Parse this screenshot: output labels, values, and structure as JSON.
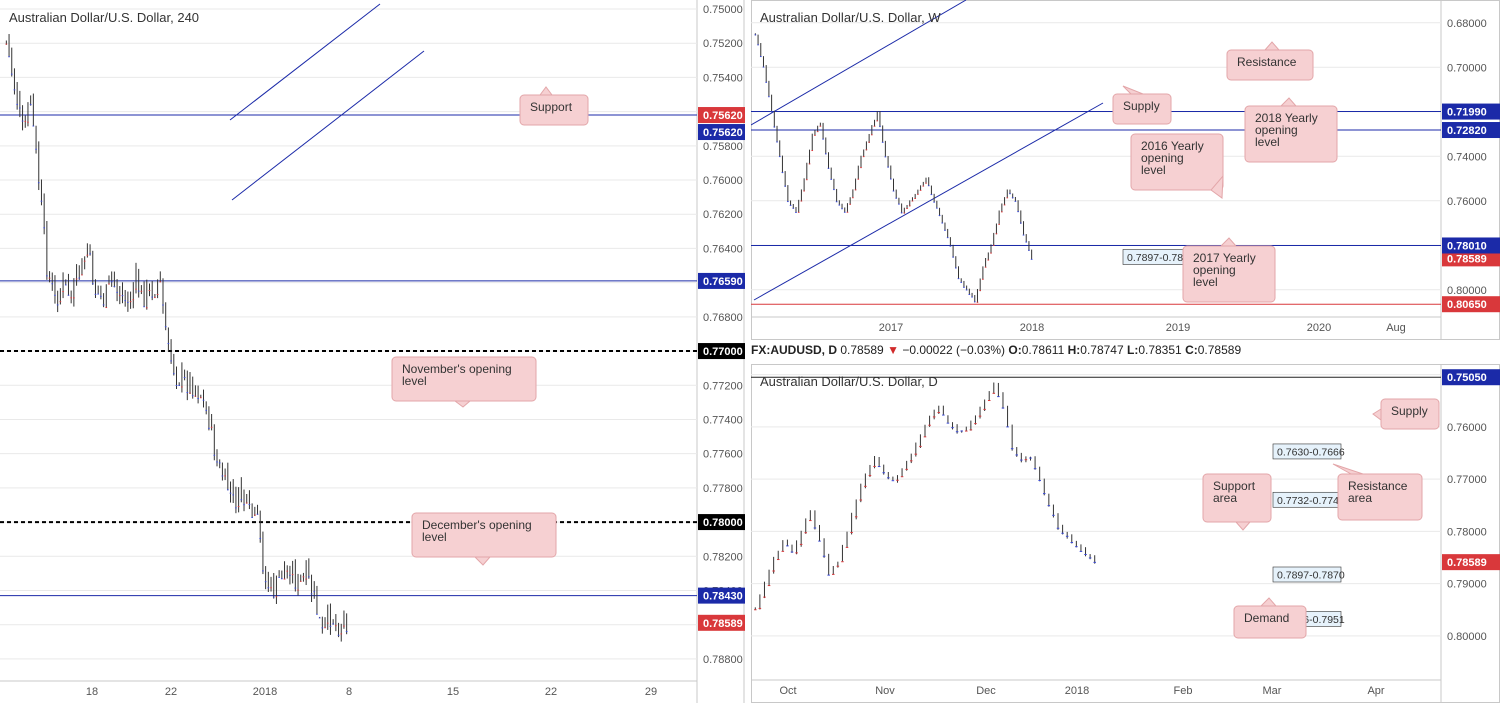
{
  "colors": {
    "up": "#3a4ad8",
    "down": "#d9383b",
    "level": "#1b2aa8",
    "red_level": "#d9383b",
    "callout_fill": "#f6d0d2",
    "callout_border": "#e3a6a9",
    "grid": "#e9e9e9",
    "zone_label_fill": "#e6f2fb"
  },
  "panels": {
    "h4": {
      "title": "Australian Dollar/U.S. Dollar, 240",
      "y_ticks": [
        "0.78800",
        "0.78600",
        "0.78400",
        "0.78200",
        "0.78000",
        "0.77800",
        "0.77600",
        "0.77400",
        "0.77200",
        "0.77000",
        "0.76800",
        "0.76600",
        "0.76400",
        "0.76200",
        "0.76000",
        "0.75800",
        "0.75600",
        "0.75400",
        "0.75200",
        "0.75000"
      ],
      "x_ticks": [
        "18",
        "22",
        "2018",
        "8",
        "15",
        "22",
        "29"
      ],
      "price_tags": [
        {
          "label": "0.78589",
          "color": "#d9383b"
        },
        {
          "label": "0.78430",
          "color": "#1b2aa8"
        },
        {
          "label": "0.78000",
          "color": "#000000"
        },
        {
          "label": "0.77000",
          "color": "#000000"
        },
        {
          "label": "0.76590",
          "color": "#1b2aa8"
        },
        {
          "label": "0.75620",
          "color": "#d9383b"
        },
        {
          "label": "0.75620",
          "color": "#1b2aa8"
        }
      ],
      "annotations": [
        {
          "text": [
            "Support"
          ]
        },
        {
          "text": [
            "November's opening",
            "level"
          ]
        },
        {
          "text": [
            "December's opening",
            "level"
          ]
        }
      ]
    },
    "weekly": {
      "title": "Australian Dollar/U.S. Dollar, W",
      "y_ticks": [
        "0.80000",
        "0.78000",
        "0.76000",
        "0.74000",
        "0.72000",
        "0.70000",
        "0.68000"
      ],
      "x_ticks": [
        "2017",
        "2018",
        "2019",
        "2020",
        "Aug"
      ],
      "price_tags": [
        {
          "label": "0.80650",
          "color": "#d9383b"
        },
        {
          "label": "0.78589",
          "color": "#d9383b"
        },
        {
          "label": "0.78010",
          "color": "#1b2aa8"
        },
        {
          "label": "0.72820",
          "color": "#1b2aa8"
        },
        {
          "label": "0.71990",
          "color": "#1b2aa8"
        }
      ],
      "zone_labels": [
        "0.7897-0.7813"
      ],
      "annotations": [
        {
          "text": [
            "Resistance"
          ]
        },
        {
          "text": [
            "Supply"
          ]
        },
        {
          "text": [
            "2018 Yearly",
            "opening",
            "level"
          ]
        },
        {
          "text": [
            "2016 Yearly",
            "opening",
            "level"
          ]
        },
        {
          "text": [
            "2017 Yearly",
            "opening",
            "level"
          ]
        }
      ]
    },
    "daily": {
      "title": "Australian Dollar/U.S. Dollar, D",
      "y_ticks": [
        "0.80000",
        "0.79000",
        "0.78000",
        "0.77000",
        "0.76000",
        "0.75000"
      ],
      "x_ticks": [
        "Oct",
        "Nov",
        "Dec",
        "2018",
        "Feb",
        "Mar",
        "Apr"
      ],
      "price_tags": [
        {
          "label": "0.78589",
          "color": "#d9383b"
        },
        {
          "label": "0.75050",
          "color": "#1b2aa8"
        }
      ],
      "zone_labels": [
        "0.7986-0.7951",
        "0.7897-0.7870",
        "0.7732-0.7749",
        "0.7630-0.7666"
      ],
      "annotations": [
        {
          "text": [
            "Supply"
          ]
        },
        {
          "text": [
            "Resistance",
            "area"
          ]
        },
        {
          "text": [
            "Support",
            "area"
          ]
        },
        {
          "text": [
            "Demand"
          ]
        }
      ]
    }
  },
  "ohlc_bar": {
    "symbol": "FX:AUDUSD, D",
    "price": "0.78589",
    "change": "−0.00022 (−0.03%)",
    "o_label": "O:",
    "o": "0.78611",
    "h_label": "H:",
    "h": "0.78747",
    "l_label": "L:",
    "l": "0.78351",
    "c_label": "C:",
    "c": "0.78589"
  },
  "chart_data": [
    {
      "type": "candlestick",
      "title": "Australian Dollar/U.S. Dollar, 240",
      "ylim": [
        0.75,
        0.789
      ],
      "horizontal_levels": [
        0.7843,
        0.78,
        0.77,
        0.7659,
        0.7562
      ],
      "close_path": [
        0.752,
        0.7545,
        0.757,
        0.7555,
        0.76,
        0.765,
        0.767,
        0.7662,
        0.7668,
        0.7655,
        0.764,
        0.7665,
        0.767,
        0.766,
        0.7665,
        0.7672,
        0.766,
        0.7668,
        0.7664,
        0.766,
        0.77,
        0.7715,
        0.7718,
        0.772,
        0.7725,
        0.774,
        0.7765,
        0.7775,
        0.7788,
        0.7785,
        0.7795,
        0.78,
        0.7835,
        0.784,
        0.783,
        0.7825,
        0.7838,
        0.783,
        0.7845,
        0.7865,
        0.7855,
        0.786,
        0.7858
      ]
    },
    {
      "type": "candlestick",
      "title": "Australian Dollar/U.S. Dollar, W",
      "ylim": [
        0.672,
        0.81
      ],
      "horizontal_levels": [
        0.8065,
        0.7801,
        0.7282,
        0.7199
      ],
      "zones": [
        [
          0.7813,
          0.7897
        ]
      ],
      "close_path": [
        0.685,
        0.7,
        0.72,
        0.74,
        0.76,
        0.765,
        0.75,
        0.73,
        0.725,
        0.745,
        0.76,
        0.765,
        0.755,
        0.74,
        0.73,
        0.72,
        0.74,
        0.755,
        0.765,
        0.76,
        0.755,
        0.75,
        0.76,
        0.77,
        0.78,
        0.795,
        0.8,
        0.805,
        0.79,
        0.78,
        0.765,
        0.755,
        0.76,
        0.775,
        0.7858
      ]
    },
    {
      "type": "candlestick",
      "title": "Australian Dollar/U.S. Dollar, D",
      "ylim": [
        0.7495,
        0.805
      ],
      "horizontal_levels": [
        0.7505
      ],
      "zones": [
        [
          0.7951,
          0.7986
        ],
        [
          0.787,
          0.7897
        ],
        [
          0.7732,
          0.7749
        ],
        [
          0.763,
          0.7666
        ]
      ],
      "close_path": [
        0.795,
        0.79,
        0.785,
        0.782,
        0.784,
        0.78,
        0.776,
        0.782,
        0.788,
        0.786,
        0.78,
        0.774,
        0.769,
        0.766,
        0.769,
        0.77,
        0.768,
        0.765,
        0.762,
        0.758,
        0.756,
        0.759,
        0.761,
        0.76,
        0.758,
        0.755,
        0.752,
        0.756,
        0.764,
        0.766,
        0.766,
        0.77,
        0.775,
        0.779,
        0.781,
        0.783,
        0.7845,
        0.7858
      ]
    }
  ]
}
